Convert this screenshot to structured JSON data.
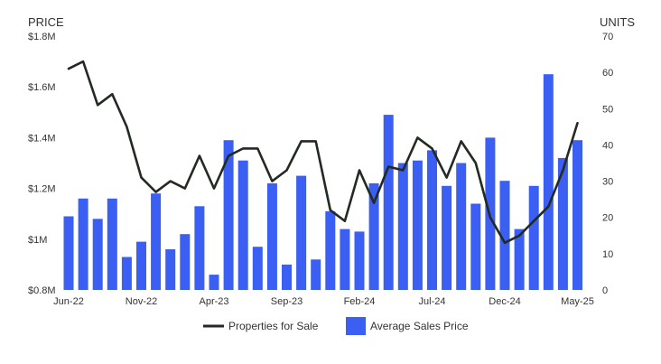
{
  "chart_data": {
    "type": "bar+line",
    "y_left_title": "PRICE",
    "y_right_title": "UNITS",
    "y_left_ticks": [
      "$0.8M",
      "$1M",
      "$1.2M",
      "$1.4M",
      "$1.6M",
      "$1.8M"
    ],
    "y_right_ticks": [
      "0",
      "10",
      "20",
      "30",
      "40",
      "50",
      "60",
      "70"
    ],
    "y_left_range": [
      0.8,
      1.8
    ],
    "y_right_range": [
      0,
      70
    ],
    "x_tick_labels": [
      "Jun-22",
      "Nov-22",
      "Apr-23",
      "Sep-23",
      "Feb-24",
      "Jul-24",
      "Dec-24",
      "May-25"
    ],
    "x_tick_label_indices": [
      0,
      5,
      10,
      15,
      20,
      25,
      30,
      35
    ],
    "categories": [
      "Jun-22",
      "Jul-22",
      "Aug-22",
      "Sep-22",
      "Oct-22",
      "Nov-22",
      "Dec-22",
      "Jan-23",
      "Feb-23",
      "Mar-23",
      "Apr-23",
      "May-23",
      "Jun-23",
      "Jul-23",
      "Aug-23",
      "Sep-23",
      "Oct-23",
      "Nov-23",
      "Dec-23",
      "Jan-24",
      "Feb-24",
      "Mar-24",
      "Apr-24",
      "May-24",
      "Jun-24",
      "Jul-24",
      "Aug-24",
      "Sep-24",
      "Oct-24",
      "Nov-24",
      "Dec-24",
      "Jan-25",
      "Feb-25",
      "Mar-25",
      "Apr-25",
      "May-25"
    ],
    "series": [
      {
        "name": "Average Sales Price",
        "type": "bar",
        "axis": "left",
        "color": "#3a5ff2",
        "values": [
          1.09,
          1.16,
          1.08,
          1.16,
          0.93,
          0.99,
          1.18,
          0.96,
          1.02,
          1.13,
          0.86,
          1.39,
          1.31,
          0.97,
          1.22,
          0.9,
          1.25,
          0.92,
          1.11,
          1.04,
          1.03,
          1.22,
          1.49,
          1.3,
          1.31,
          1.35,
          1.21,
          1.3,
          1.14,
          1.4,
          1.23,
          1.04,
          1.21,
          1.65,
          1.32,
          1.39
        ]
      },
      {
        "name": "Properties for Sale",
        "type": "line",
        "axis": "right",
        "color": "#222a22",
        "values": [
          61,
          63,
          51,
          54,
          45,
          31,
          27,
          30,
          28,
          37,
          28,
          37,
          39,
          39,
          30,
          33,
          41,
          41,
          22,
          19,
          33,
          24,
          34,
          33,
          42,
          39,
          31,
          41,
          35,
          20,
          13,
          15,
          19,
          23,
          33,
          46
        ]
      }
    ],
    "legend": {
      "placement": "bottom",
      "items": [
        "Properties for Sale",
        "Average Sales Price"
      ]
    },
    "grid": false
  }
}
